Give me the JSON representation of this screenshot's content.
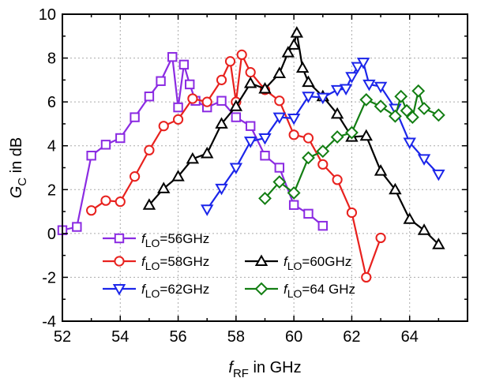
{
  "chart_data": {
    "type": "line",
    "xlabel": {
      "main": "f",
      "sub": "RF",
      "rest": " in GHz"
    },
    "ylabel": {
      "main": "G",
      "sub": "C",
      "rest": " in dB"
    },
    "xlim": [
      52,
      66
    ],
    "ylim": [
      -4,
      10
    ],
    "xticks": [
      52,
      54,
      56,
      58,
      60,
      62,
      64
    ],
    "yticks": [
      -4,
      -2,
      0,
      2,
      4,
      6,
      8,
      10
    ],
    "grid": true,
    "legend_placement": "bottom-left",
    "series": [
      {
        "name": {
          "main": "f",
          "sub": "LO",
          "rest": "=56GHz"
        },
        "color": "#8B2BE2",
        "marker": "square",
        "x": [
          52.0,
          52.5,
          53.0,
          53.5,
          54.0,
          54.5,
          55.0,
          55.4,
          55.8,
          56.0,
          56.2,
          56.4,
          56.6,
          57.0,
          57.5,
          58.0,
          58.5,
          59.0,
          59.5,
          60.0,
          60.5,
          61.0
        ],
        "y": [
          0.15,
          0.3,
          3.55,
          4.05,
          4.35,
          5.3,
          6.25,
          6.95,
          8.05,
          5.75,
          7.7,
          6.8,
          6.05,
          5.75,
          6.05,
          5.3,
          4.9,
          3.55,
          3.0,
          1.3,
          0.9,
          0.35
        ]
      },
      {
        "name": {
          "main": "f",
          "sub": "LO",
          "rest": "=58GHz"
        },
        "color": "#E8211E",
        "marker": "circle",
        "x": [
          53.0,
          53.5,
          54.0,
          54.5,
          55.0,
          55.5,
          56.0,
          56.5,
          57.0,
          57.5,
          57.8,
          58.0,
          58.2,
          58.5,
          59.0,
          59.5,
          60.0,
          60.5,
          61.0,
          61.5,
          62.0,
          62.5,
          63.0
        ],
        "y": [
          1.05,
          1.5,
          1.45,
          2.6,
          3.8,
          4.9,
          5.2,
          6.15,
          6.0,
          7.0,
          7.85,
          6.0,
          8.15,
          7.35,
          6.55,
          6.05,
          4.5,
          4.35,
          3.15,
          2.45,
          0.95,
          -2.0,
          -0.2
        ]
      },
      {
        "name": {
          "main": "f",
          "sub": "LO",
          "rest": "=60GHz"
        },
        "color": "#000000",
        "marker": "triangle-up",
        "x": [
          55.0,
          55.5,
          56.0,
          56.5,
          57.0,
          57.5,
          58.0,
          58.5,
          59.0,
          59.5,
          59.8,
          60.0,
          60.1,
          60.3,
          60.5,
          61.0,
          61.5,
          62.0,
          62.5,
          63.0,
          63.5,
          64.0,
          64.5,
          65.0
        ],
        "y": [
          1.3,
          2.05,
          2.6,
          3.4,
          3.65,
          5.0,
          5.8,
          6.85,
          6.6,
          7.3,
          8.25,
          8.6,
          9.15,
          7.55,
          6.9,
          6.25,
          5.45,
          4.4,
          4.45,
          2.85,
          2.0,
          0.65,
          0.15,
          -0.5
        ]
      },
      {
        "name": {
          "main": "f",
          "sub": "LO",
          "rest": "=62GHz"
        },
        "color": "#1B25EA",
        "marker": "triangle-down",
        "x": [
          57.0,
          57.5,
          58.0,
          58.5,
          59.0,
          59.5,
          60.0,
          60.5,
          61.0,
          61.5,
          61.8,
          62.0,
          62.2,
          62.4,
          62.6,
          63.0,
          63.5,
          64.0,
          64.5,
          65.0
        ],
        "y": [
          1.1,
          2.05,
          3.0,
          4.2,
          4.35,
          5.3,
          5.25,
          6.25,
          6.2,
          6.55,
          6.6,
          7.15,
          7.6,
          7.8,
          6.8,
          6.7,
          5.7,
          4.15,
          3.4,
          2.7
        ]
      },
      {
        "name": {
          "main": "f",
          "sub": "LO",
          "rest": "=64 GHz"
        },
        "color": "#137E13",
        "marker": "diamond",
        "x": [
          59.0,
          59.5,
          60.0,
          60.5,
          61.0,
          61.5,
          62.0,
          62.5,
          63.0,
          63.5,
          63.7,
          63.9,
          64.1,
          64.3,
          64.5,
          65.0
        ],
        "y": [
          1.6,
          2.35,
          1.85,
          3.45,
          3.75,
          4.4,
          4.6,
          6.1,
          5.8,
          5.35,
          6.25,
          5.6,
          5.3,
          6.5,
          5.7,
          5.4
        ]
      }
    ]
  }
}
